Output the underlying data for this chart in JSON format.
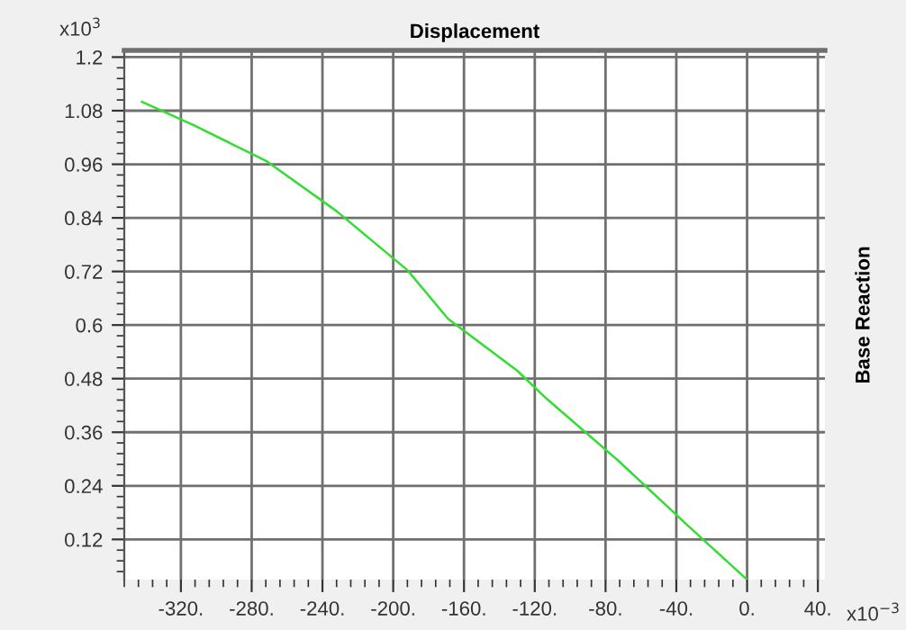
{
  "chart_data": {
    "type": "line",
    "title": "Displacement",
    "ylabel": "Base Reaction",
    "x": [
      -342,
      -313,
      -272,
      -232,
      -192,
      -169,
      -130,
      -113,
      -73,
      -33,
      0
    ],
    "series": [
      {
        "color": "#33dd33",
        "values": [
          1.1,
          1.048,
          0.968,
          0.855,
          0.723,
          0.614,
          0.498,
          0.434,
          0.297,
          0.149,
          0.03
        ]
      }
    ],
    "xlim": [
      -352,
      44
    ],
    "ylim": [
      0.03,
      1.215
    ],
    "xticks": [
      {
        "value": -320,
        "label": "-320."
      },
      {
        "value": -280,
        "label": "-280."
      },
      {
        "value": -240,
        "label": "-240."
      },
      {
        "value": -200,
        "label": "-200."
      },
      {
        "value": -160,
        "label": "-160."
      },
      {
        "value": -120,
        "label": "-120."
      },
      {
        "value": -80,
        "label": "-80."
      },
      {
        "value": -40,
        "label": "-40."
      },
      {
        "value": 0,
        "label": "0."
      },
      {
        "value": 40,
        "label": "40."
      }
    ],
    "yticks": [
      0.12,
      0.24,
      0.36,
      0.48,
      0.6,
      0.72,
      0.84,
      0.96,
      1.08,
      1.2
    ],
    "annotations": [
      "x10$^{3}$",
      "x10$^{−3}$"
    ],
    "grid": true,
    "marker": "none",
    "line_style": "solid"
  }
}
